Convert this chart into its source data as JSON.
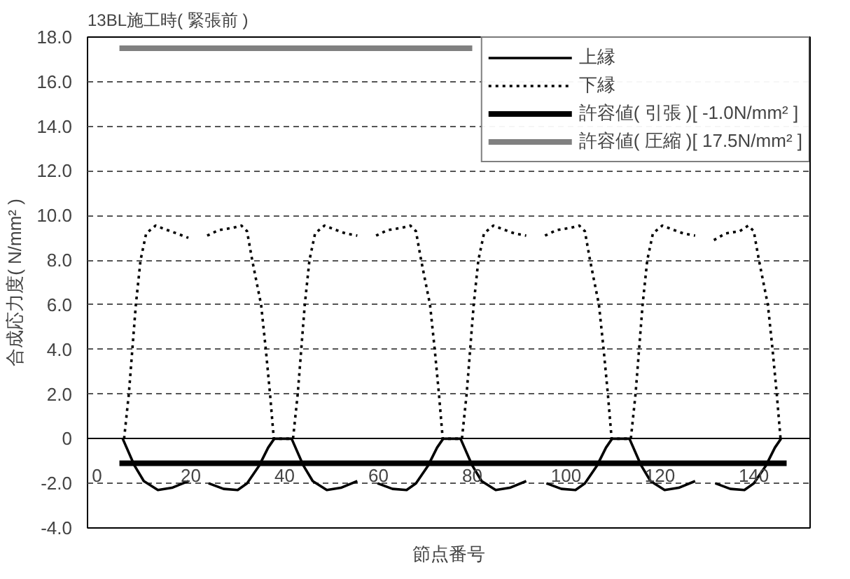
{
  "chart_data": {
    "type": "line",
    "title": "13BL施工時( 緊張前 )",
    "xlabel": "節点番号",
    "ylabel": "合成応力度( N/mm² )",
    "xlim": [
      -2,
      152
    ],
    "xticks": [
      0,
      20,
      40,
      60,
      80,
      100,
      120,
      140
    ],
    "ylim": [
      -4,
      18
    ],
    "yticks": [
      {
        "value": -4,
        "label": "-4.0"
      },
      {
        "value": -2,
        "label": "-2.0"
      },
      {
        "value": 0,
        "label": "0"
      },
      {
        "value": 2,
        "label": "2.0"
      },
      {
        "value": 4,
        "label": "4.0"
      },
      {
        "value": 6,
        "label": "6.0"
      },
      {
        "value": 8,
        "label": "8.0"
      },
      {
        "value": 10,
        "label": "10.0"
      },
      {
        "value": 12,
        "label": "12.0"
      },
      {
        "value": 14,
        "label": "14.0"
      },
      {
        "value": 16,
        "label": "16.0"
      },
      {
        "value": 18,
        "label": "18.0"
      }
    ],
    "grid": "y",
    "legend": "top right",
    "series": [
      {
        "name": "上縁",
        "color": "#000000",
        "line_style": "solid",
        "x": [
          5.5,
          8,
          10,
          13,
          16,
          19.5,
          21.5,
          23.8,
          27,
          30,
          32,
          34.6,
          36.5,
          37.8,
          41.5,
          44,
          46,
          49,
          52,
          55.5,
          57.5,
          59.8,
          63,
          66,
          68,
          70.6,
          72.5,
          73.8,
          77.5,
          80,
          82,
          85,
          88,
          91.5,
          93.5,
          95.8,
          99,
          102,
          104,
          106.6,
          108.5,
          109.8,
          113.5,
          116,
          118,
          121,
          124,
          127.5,
          129.5,
          131.8,
          135,
          138,
          140,
          142.6,
          144.5,
          145.8
        ],
        "values": [
          0,
          -1.2,
          -1.9,
          -2.3,
          -2.2,
          -1.9,
          null,
          -2.0,
          -2.25,
          -2.3,
          -2.0,
          -1.2,
          -0.4,
          0,
          0,
          -1.2,
          -1.9,
          -2.3,
          -2.2,
          -1.9,
          null,
          -2.0,
          -2.25,
          -2.3,
          -2.0,
          -1.2,
          -0.4,
          0,
          0,
          -1.2,
          -1.9,
          -2.3,
          -2.2,
          -1.9,
          null,
          -2.0,
          -2.25,
          -2.3,
          -2.0,
          -1.2,
          -0.4,
          0,
          0,
          -1.2,
          -1.9,
          -2.3,
          -2.2,
          -1.9,
          null,
          -2.0,
          -2.25,
          -2.3,
          -2.0,
          -1.2,
          -0.4,
          0
        ]
      },
      {
        "name": "下縁",
        "color": "#000000",
        "line_style": "dotted",
        "x": [
          5.8,
          6.8,
          8.3,
          9.3,
          10.5,
          12.5,
          15,
          17,
          19.5,
          21.5,
          23.5,
          26,
          29,
          30.8,
          32,
          33.1,
          35,
          36,
          36.9,
          37.7,
          41.8,
          42.8,
          44.3,
          45.3,
          46.5,
          48.5,
          51,
          53,
          55.5,
          57.5,
          59.5,
          62,
          65,
          66.8,
          68,
          69.1,
          71,
          72,
          72.9,
          73.7,
          77.8,
          78.8,
          80.3,
          81.3,
          82.5,
          84.5,
          87,
          89,
          91.5,
          93.5,
          95.5,
          98,
          101,
          102.8,
          104,
          105.1,
          107,
          108,
          108.9,
          109.7,
          113.8,
          114.8,
          116.3,
          117.3,
          118.5,
          120.5,
          123,
          125,
          127.5,
          129.5,
          131.5,
          134,
          137,
          138.8,
          140,
          141.1,
          143,
          144,
          144.9,
          145.7
        ],
        "values": [
          0,
          2,
          6,
          8,
          9.2,
          9.55,
          9.35,
          9.2,
          9.0,
          null,
          9.1,
          9.35,
          9.45,
          9.55,
          9.3,
          8,
          6,
          4,
          2,
          0,
          0,
          2,
          6,
          8,
          9.2,
          9.55,
          9.35,
          9.2,
          9.1,
          null,
          9.1,
          9.35,
          9.45,
          9.55,
          9.3,
          8,
          6,
          4,
          2,
          0,
          0,
          2,
          6,
          8,
          9.2,
          9.55,
          9.35,
          9.2,
          9.1,
          null,
          9.1,
          9.35,
          9.45,
          9.55,
          9.3,
          8,
          6,
          4,
          2,
          0,
          0,
          2,
          6,
          8,
          9.2,
          9.55,
          9.35,
          9.2,
          9.1,
          null,
          8.9,
          9.2,
          9.3,
          9.55,
          9.3,
          8,
          6,
          4,
          2,
          0
        ]
      },
      {
        "name": "許容値( 引張 )[ -1.0N/mm² ]",
        "color": "#000000",
        "line_style": "solid",
        "x": [
          4.8,
          147
        ],
        "values": [
          -1.1,
          -1.1
        ]
      },
      {
        "name": "許容値( 圧縮 )[ 17.5N/mm² ]",
        "color": "#808080",
        "line_style": "solid",
        "x": [
          4.8,
          80
        ],
        "values": [
          17.5,
          17.5
        ]
      }
    ]
  }
}
